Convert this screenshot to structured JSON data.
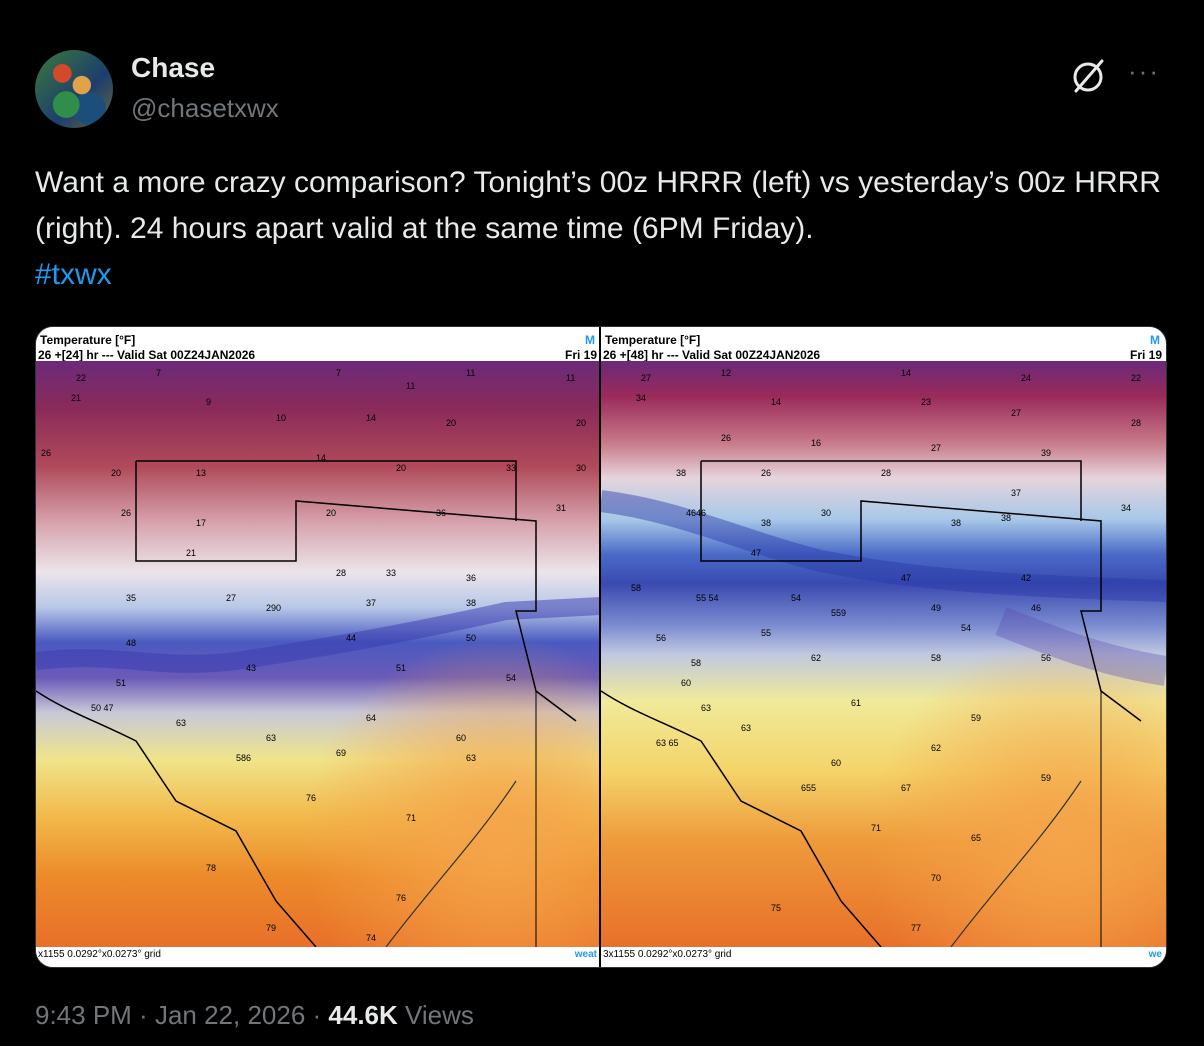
{
  "author": {
    "name": "Chase",
    "handle": "@chasetxwx"
  },
  "tweet": {
    "text": "Want a more crazy comparison? Tonight’s 00z HRRR (left) vs yesterday’s 00z HRRR (right). 24 hours apart valid at the same time (6PM Friday).",
    "hashtag": "#txwx"
  },
  "maps": {
    "left": {
      "title": "Temperature [°F]",
      "subtitle": "26 +[24] hr --- Valid Sat 00Z24JAN2026",
      "right_label": "Fri 19",
      "corner": "M",
      "footer": "x1155 0.0292°x0.0273° grid",
      "footer_right": "weat"
    },
    "right": {
      "title": "Temperature [°F]",
      "subtitle": "26 +[48] hr --- Valid Sat 00Z24JAN2026",
      "right_label": "Fri 19",
      "corner": "M",
      "footer": "3x1155 0.0292°x0.0273° grid",
      "footer_right": "we"
    }
  },
  "icons": {
    "grok": "grok-icon",
    "more": "more-options-icon"
  },
  "meta": {
    "time": "9:43 PM",
    "date": "Jan 22, 2026",
    "views": "44.6K",
    "views_label": "Views"
  }
}
